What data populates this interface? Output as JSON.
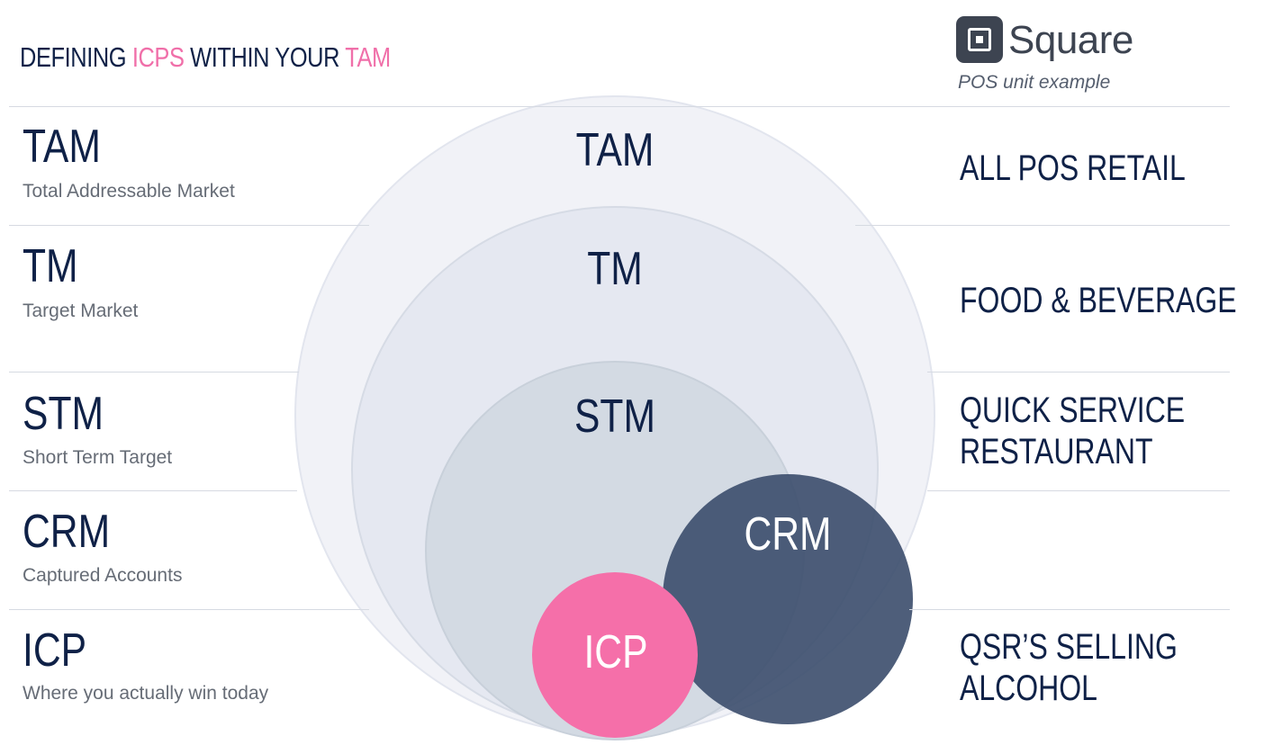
{
  "header": {
    "title_part1": "DEFINING ",
    "title_part2": "ICPS",
    "title_part3": " WITHIN YOUR ",
    "title_part4": "TAM"
  },
  "logo": {
    "name": "Square",
    "icon": "square-logo-icon",
    "caption": "POS unit example"
  },
  "rows": [
    {
      "abbr": "TAM",
      "desc": "Total Addressable Market",
      "example": [
        "ALL POS RETAIL"
      ]
    },
    {
      "abbr": "TM",
      "desc": "Target Market",
      "example": [
        "FOOD & BEVERAGE"
      ]
    },
    {
      "abbr": "STM",
      "desc": "Short Term Target",
      "example": [
        "QUICK SERVICE",
        "RESTAURANT"
      ]
    },
    {
      "abbr": "CRM",
      "desc": "Captured Accounts",
      "example": []
    },
    {
      "abbr": "ICP",
      "desc": "Where you actually win today",
      "example": [
        "QSR’S SELLING",
        "ALCOHOL"
      ]
    }
  ],
  "diagram": {
    "circles": [
      {
        "label": "TAM",
        "fill": "#eef0f6"
      },
      {
        "label": "TM",
        "fill": "#e3e7ef"
      },
      {
        "label": "STM",
        "fill": "#d3dae3"
      },
      {
        "label": "CRM",
        "fill": "#3b4d6c"
      },
      {
        "label": "ICP",
        "fill": "#f56fa9"
      }
    ]
  },
  "colors": {
    "navy": "#0f2147",
    "pink": "#f06fa9",
    "gray": "#666c76"
  }
}
